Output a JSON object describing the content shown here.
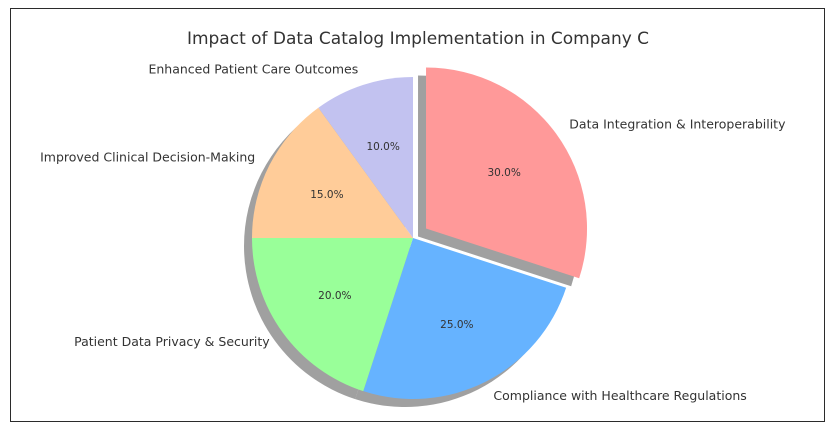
{
  "chart_data": {
    "type": "pie",
    "title": "Impact of Data Catalog Implementation in Company C",
    "slices": [
      {
        "label": "Data Integration & Interoperability",
        "value": 30.0,
        "pct_label": "30.0%",
        "color": "#ff9999",
        "explode": true
      },
      {
        "label": "Compliance with Healthcare Regulations",
        "value": 25.0,
        "pct_label": "25.0%",
        "color": "#66b3ff",
        "explode": false
      },
      {
        "label": "Patient Data Privacy & Security",
        "value": 20.0,
        "pct_label": "20.0%",
        "color": "#99ff99",
        "explode": false
      },
      {
        "label": "Improved Clinical Decision-Making",
        "value": 15.0,
        "pct_label": "15.0%",
        "color": "#ffcc99",
        "explode": false
      },
      {
        "label": "Enhanced Patient Care Outcomes",
        "value": 10.0,
        "pct_label": "10.0%",
        "color": "#c2c2f0",
        "explode": false
      }
    ],
    "start_angle": 90,
    "shadow": true,
    "legend": "none"
  }
}
